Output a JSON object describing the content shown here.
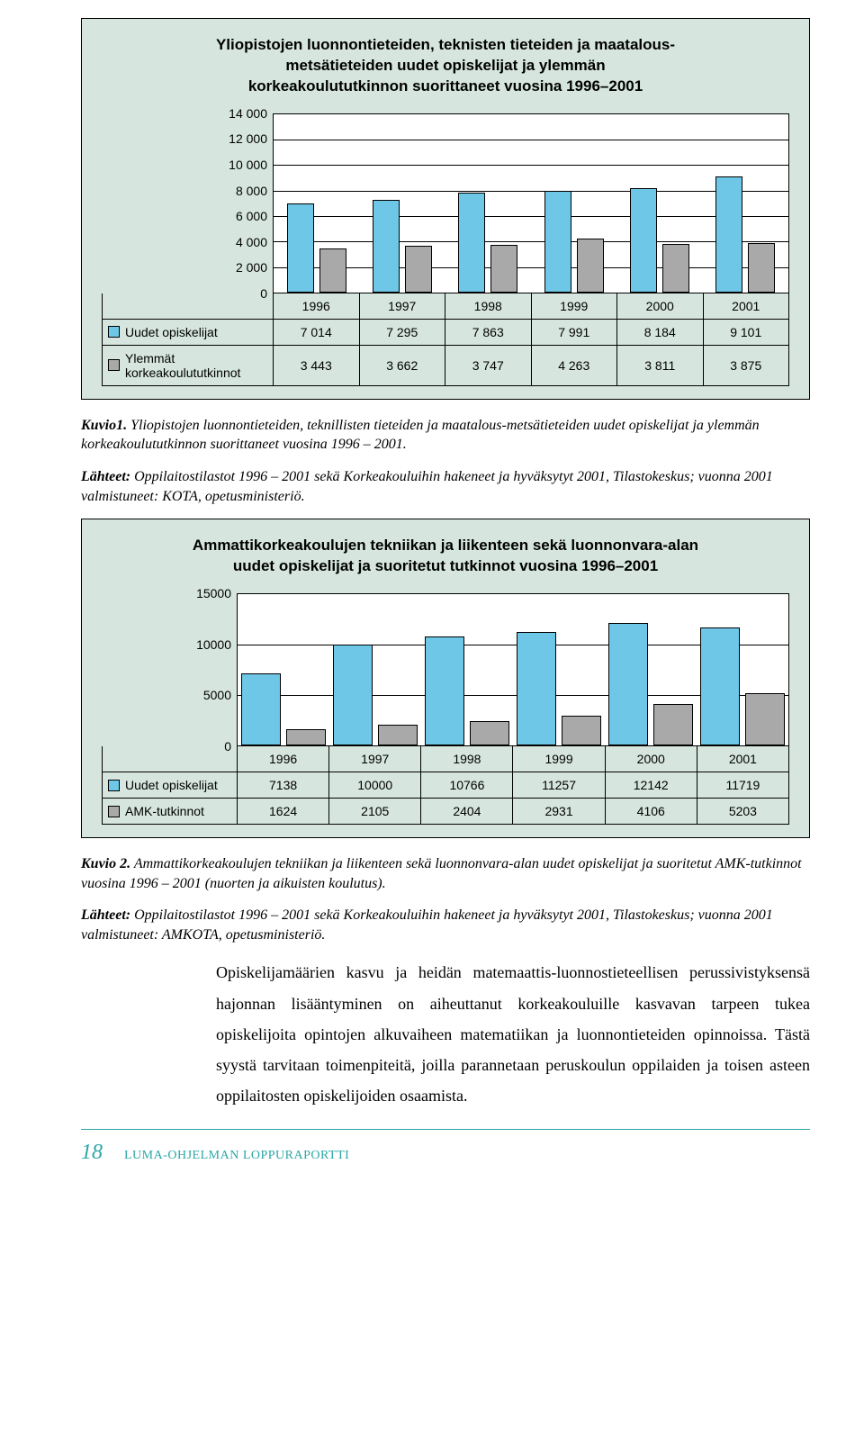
{
  "colors": {
    "panel_bg": "#d6e6de",
    "bar_blue": "#6ec7e6",
    "bar_gray": "#a9a9a9",
    "accent": "#2ba6a6"
  },
  "chart1": {
    "type": "bar",
    "title_line1": "Yliopistojen luonnontieteiden, teknisten tieteiden ja maatalous-",
    "title_line2": "metsätieteiden uudet opiskelijat ja ylemmän",
    "title_line3": "korkeakoulututkinnon suorittaneet vuosina 1996–2001",
    "y_ticks": [
      "14 000",
      "12 000",
      "10 000",
      "8 000",
      "6 000",
      "4 000",
      "2 000",
      "0"
    ],
    "ymax": 14000,
    "categories": [
      "1996",
      "1997",
      "1998",
      "1999",
      "2000",
      "2001"
    ],
    "series": [
      {
        "label": "Uudet opiskelijat",
        "color": "blue",
        "values": [
          7014,
          7295,
          7863,
          7991,
          8184,
          9101
        ],
        "display": [
          "7 014",
          "7 295",
          "7 863",
          "7 991",
          "8 184",
          "9 101"
        ]
      },
      {
        "label": "Ylemmät korkeakoulututkinnot",
        "color": "gray",
        "values": [
          3443,
          3662,
          3747,
          4263,
          3811,
          3875
        ],
        "display": [
          "3 443",
          "3 662",
          "3 747",
          "4 263",
          "3 811",
          "3 875"
        ]
      }
    ],
    "row1_label_a": "Ylemmät",
    "row1_label_b": "korkeakoulututkinnot"
  },
  "caption1_label": "Kuvio1.",
  "caption1_text": " Yliopistojen luonnontieteiden, teknillisten tieteiden ja maatalous-metsätieteiden uudet opiskelijat ja ylemmän korkeakoulututkinnon suorittaneet vuosina 1996 – 2001.",
  "sources1_label": "Lähteet:",
  "sources1_text": " Oppilaitostilastot 1996 – 2001 sekä Korkeakouluihin hakeneet ja hyväksytyt 2001, Tilastokeskus; vuonna 2001 valmistuneet: KOTA, opetusministeriö.",
  "chart2": {
    "type": "bar",
    "title_line1": "Ammattikorkeakoulujen tekniikan ja liikenteen sekä luonnonvara-alan",
    "title_line2": "uudet opiskelijat ja suoritetut tutkinnot vuosina 1996–2001",
    "y_ticks": [
      "15000",
      "10000",
      "5000",
      "0"
    ],
    "ymax": 15000,
    "categories": [
      "1996",
      "1997",
      "1998",
      "1999",
      "2000",
      "2001"
    ],
    "series": [
      {
        "label": "Uudet opiskelijat",
        "color": "blue",
        "values": [
          7138,
          10000,
          10766,
          11257,
          12142,
          11719
        ],
        "display": [
          "7138",
          "10000",
          "10766",
          "11257",
          "12142",
          "11719"
        ]
      },
      {
        "label": "AMK-tutkinnot",
        "color": "gray",
        "values": [
          1624,
          2105,
          2404,
          2931,
          4106,
          5203
        ],
        "display": [
          "1624",
          "2105",
          "2404",
          "2931",
          "4106",
          "5203"
        ]
      }
    ]
  },
  "caption2_label": "Kuvio 2.",
  "caption2_text": " Ammattikorkeakoulujen tekniikan ja liikenteen sekä luonnonvara-alan uudet opiskelijat ja suoritetut AMK-tutkinnot vuosina 1996 – 2001 (nuorten ja aikuisten koulutus).",
  "sources2_label": "Lähteet:",
  "sources2_text": " Oppilaitostilastot 1996 – 2001 sekä Korkeakouluihin hakeneet ja hyväksytyt 2001, Tilastokeskus; vuonna 2001 valmistuneet: AMKOTA, opetusministeriö.",
  "body_para": "Opiskelijamäärien kasvu ja heidän matemaattis-luonnostieteellisen perussivistyksensä hajonnan lisääntyminen on aiheuttanut korkeakouluille kasvavan tarpeen tukea opiskelijoita opintojen alkuvaiheen matematiikan ja luonnontieteiden opinnoissa. Tästä syystä tarvitaan toimenpiteitä, joilla parannetaan peruskoulun oppilaiden ja toisen asteen oppilaitosten opiskelijoiden osaamista.",
  "footer": {
    "page_number": "18",
    "doc_title": "LUMA-OHJELMAN LOPPURAPORTTI"
  }
}
